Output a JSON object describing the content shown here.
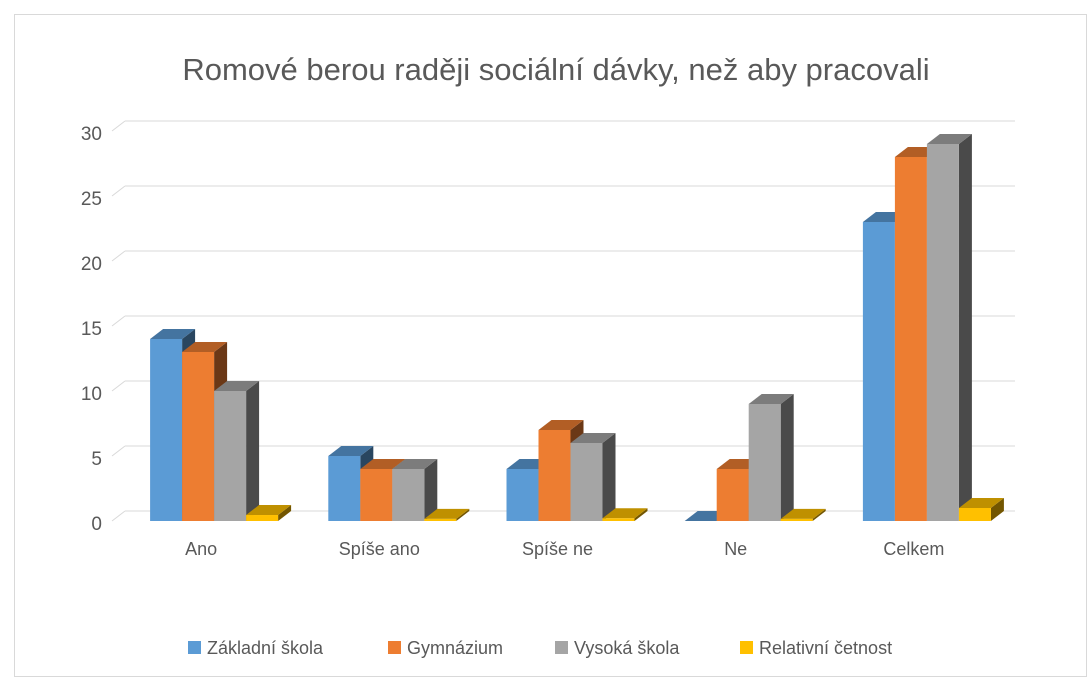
{
  "chart_data": {
    "type": "bar3d",
    "title": "Romové berou raději sociální dávky, než aby pracovali",
    "categories": [
      "Ano",
      "Spíše ano",
      "Spíše ne",
      "Ne",
      "Celkem"
    ],
    "series": [
      {
        "name": "Základní škola",
        "color": "#5b9bd5",
        "values": [
          14,
          5,
          4,
          0,
          23
        ]
      },
      {
        "name": "Gymnázium",
        "color": "#ed7d31",
        "values": [
          13,
          4,
          7,
          4,
          28
        ]
      },
      {
        "name": "Vysoká škola",
        "color": "#a5a5a5",
        "values": [
          10,
          4,
          6,
          9,
          29
        ]
      },
      {
        "name": "Relativní četnost",
        "color": "#ffc000",
        "values": [
          0.46,
          0.16,
          0.21,
          0.16,
          1
        ]
      }
    ],
    "ylim": [
      0,
      30
    ],
    "yticks": [
      0,
      5,
      10,
      15,
      20,
      25,
      30
    ],
    "grid": true,
    "legend": "bottom"
  }
}
